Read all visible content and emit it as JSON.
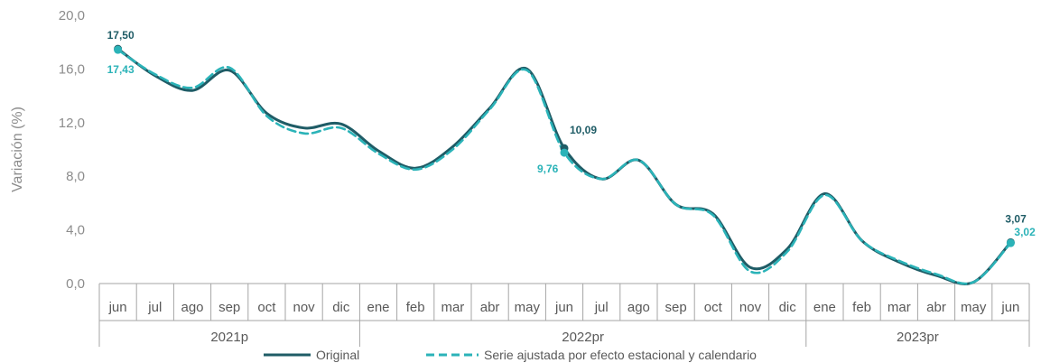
{
  "chart_data": {
    "type": "line",
    "ylabel": "Variación (%)",
    "ylim": [
      0,
      20
    ],
    "yticks": [
      "0,0",
      "4,0",
      "8,0",
      "12,0",
      "16,0",
      "20,0"
    ],
    "yticks_values": [
      0,
      4,
      8,
      12,
      16,
      20
    ],
    "categories": [
      "jun",
      "jul",
      "ago",
      "sep",
      "oct",
      "nov",
      "dic",
      "ene",
      "feb",
      "mar",
      "abr",
      "may",
      "jun",
      "jul",
      "ago",
      "sep",
      "oct",
      "nov",
      "dic",
      "ene",
      "feb",
      "mar",
      "abr",
      "may",
      "jun"
    ],
    "year_groups": [
      {
        "label": "2021p",
        "from": 0,
        "to": 6
      },
      {
        "label": "2022pr",
        "from": 7,
        "to": 18
      },
      {
        "label": "2023pr",
        "from": 19,
        "to": 24
      }
    ],
    "series": [
      {
        "name": "Original",
        "color": "#1f5c66",
        "dash": false,
        "values": [
          17.5,
          15.5,
          14.4,
          15.9,
          12.7,
          11.6,
          11.9,
          9.9,
          8.6,
          10.2,
          13.1,
          16.0,
          10.09,
          7.8,
          9.2,
          5.9,
          5.2,
          1.2,
          2.6,
          6.7,
          3.2,
          1.6,
          0.6,
          0.1,
          3.07
        ]
      },
      {
        "name": "Serie ajustada por efecto estacional y calendario",
        "color": "#2bb3b8",
        "dash": true,
        "values": [
          17.43,
          15.6,
          14.6,
          16.1,
          12.5,
          11.2,
          11.6,
          9.7,
          8.5,
          10.0,
          13.0,
          15.9,
          9.76,
          7.8,
          9.2,
          5.9,
          5.1,
          0.9,
          2.4,
          6.6,
          3.2,
          1.7,
          0.7,
          0.1,
          3.02
        ]
      }
    ],
    "annotations": [
      {
        "index": 0,
        "series": 0,
        "text": "17,50"
      },
      {
        "index": 0,
        "series": 1,
        "text": "17,43"
      },
      {
        "index": 12,
        "series": 0,
        "text": "10,09"
      },
      {
        "index": 12,
        "series": 1,
        "text": "9,76"
      },
      {
        "index": 24,
        "series": 0,
        "text": "3,07"
      },
      {
        "index": 24,
        "series": 1,
        "text": "3,02"
      }
    ],
    "legend": [
      "Original",
      "Serie ajustada por efecto estacional y calendario"
    ],
    "legend_position": "bottom",
    "grid": false
  }
}
